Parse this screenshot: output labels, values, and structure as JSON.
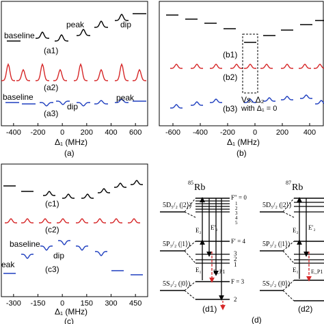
{
  "panel_a": {
    "caption": "(a)",
    "xlabel": "Δ₁ (MHz)",
    "ticks": [
      "-400",
      "-200",
      "0",
      "200",
      "400",
      "600"
    ],
    "labels": {
      "a1": "(a1)",
      "a2": "(a2)",
      "a3": "(a3)",
      "baseline_top": "baseline",
      "peak_top": "peak",
      "dip_top": "dip",
      "baseline_bottom": "baseline",
      "dip_bottom": "dip",
      "peak_bottom": "peak"
    }
  },
  "panel_b": {
    "caption": "(b)",
    "xlabel": "Δ₁ (MHz)",
    "ticks": [
      "-600",
      "-400",
      "-200",
      "0",
      "200",
      "400"
    ],
    "labels": {
      "b1": "(b1)",
      "b2": "(b2)",
      "b3": "(b3)",
      "vs": "Vs. Δ₂",
      "with": "with Δ₁ = 0"
    }
  },
  "panel_c": {
    "caption": "(c)",
    "xlabel": "Δ₁ (MHz)",
    "ticks": [
      "-300",
      "-150",
      "0",
      "150",
      "300",
      "450"
    ],
    "labels": {
      "c1": "(c1)",
      "c2": "(c2)",
      "c3": "(c3)",
      "baseline": "baseline",
      "dip": "dip",
      "peak": "eak"
    }
  },
  "panel_d": {
    "caption": "(d)",
    "d1": "(d1)",
    "d2": "(d2)",
    "rb85_mass": "85",
    "rb87_mass": "87",
    "rb": "Rb",
    "levels": {
      "d52": "5D₅/₂ (|2⟩)",
      "p32": "5P₃/₂ (|1⟩)",
      "s12": "5S₁/₂ (|0⟩)"
    },
    "f_top": "F″ = 0",
    "f_mid": "F′ = 4",
    "f_bot": "F = 3",
    "upper_hf": [
      "1",
      "2",
      "3",
      "4",
      "5"
    ],
    "mid_hf": [
      "3",
      "2",
      "1"
    ],
    "bottom_hf": "2",
    "arrows": {
      "e2": "E₂",
      "e2p": "E′₂",
      "e1": "E₁",
      "ep1": "E_P1"
    }
  },
  "colors": {
    "black": "#000000",
    "red": "#d62728",
    "blue": "#1f3fbf"
  }
}
